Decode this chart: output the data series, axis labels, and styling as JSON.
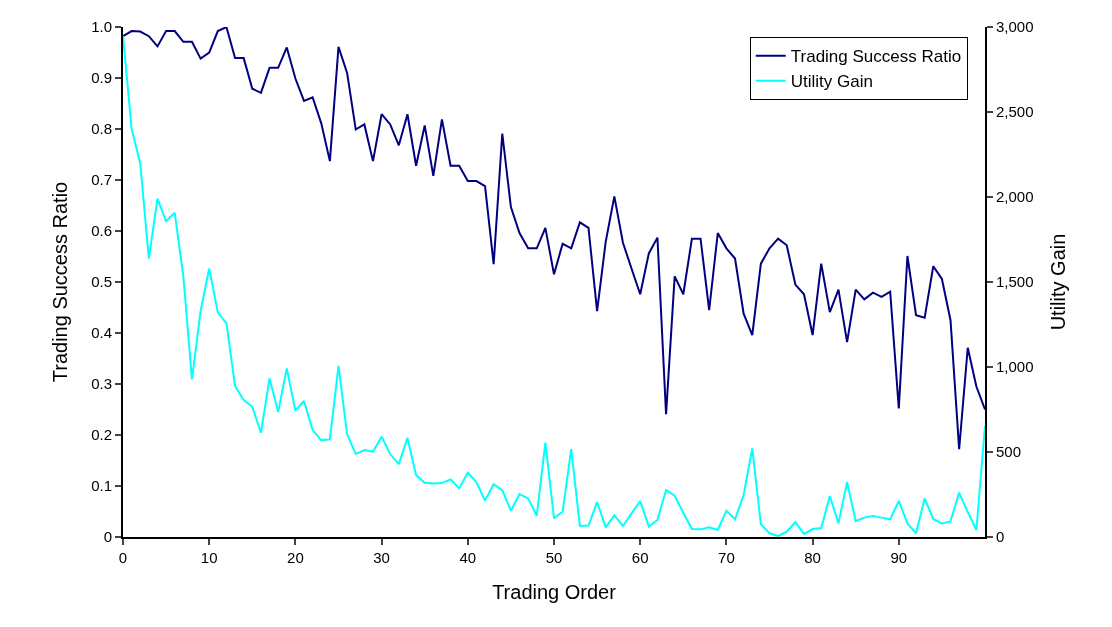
{
  "chart_data": {
    "type": "line",
    "xlabel": "Trading Order",
    "ylabel": "Trading Success Ratio",
    "y2label": "Utility Gain",
    "x": [
      0,
      1,
      2,
      3,
      4,
      5,
      6,
      7,
      8,
      9,
      10,
      11,
      12,
      13,
      14,
      15,
      16,
      17,
      18,
      19,
      20,
      21,
      22,
      23,
      24,
      25,
      26,
      27,
      28,
      29,
      30,
      31,
      32,
      33,
      34,
      35,
      36,
      37,
      38,
      39,
      40,
      41,
      42,
      43,
      44,
      45,
      46,
      47,
      48,
      49,
      50,
      51,
      52,
      53,
      54,
      55,
      56,
      57,
      58,
      59,
      60,
      61,
      62,
      63,
      64,
      65,
      66,
      67,
      68,
      69,
      70,
      71,
      72,
      73,
      74,
      75,
      76,
      77,
      78,
      79,
      80,
      81,
      82,
      83,
      84,
      85,
      86,
      87,
      88,
      89,
      90,
      91,
      92,
      93,
      94,
      95,
      96,
      97,
      98,
      99,
      100
    ],
    "xlim": [
      0,
      100
    ],
    "xticks": [
      0,
      10,
      20,
      30,
      40,
      50,
      60,
      70,
      80,
      90
    ],
    "ylim": [
      0,
      1
    ],
    "yticks": [
      0,
      0.1,
      0.2,
      0.3,
      0.4,
      0.5,
      0.6,
      0.7,
      0.8,
      0.9,
      {
        "value": 1,
        "label": "1.0"
      }
    ],
    "y2lim": [
      0,
      3000
    ],
    "y2ticks": [
      0,
      500,
      {
        "value": 1000,
        "label": "1,000"
      },
      {
        "value": 1500,
        "label": "1,500"
      },
      {
        "value": 2000,
        "label": "2,000"
      },
      {
        "value": 2500,
        "label": "2,500"
      },
      {
        "value": 3000,
        "label": "3,000"
      }
    ],
    "grid": false,
    "legend": "top right",
    "marker": "none",
    "line_style": "solid",
    "series": [
      {
        "name": "Trading Success Ratio",
        "color": "#000080",
        "values": [
          0.982,
          0.992,
          0.991,
          0.982,
          0.962,
          0.992,
          0.992,
          0.971,
          0.971,
          0.938,
          0.95,
          0.992,
          1.0,
          0.939,
          0.939,
          0.879,
          0.871,
          0.92,
          0.92,
          0.96,
          0.899,
          0.855,
          0.862,
          0.811,
          0.737,
          0.961,
          0.91,
          0.799,
          0.809,
          0.737,
          0.829,
          0.809,
          0.768,
          0.829,
          0.728,
          0.807,
          0.708,
          0.819,
          0.728,
          0.728,
          0.698,
          0.698,
          0.688,
          0.535,
          0.791,
          0.647,
          0.596,
          0.566,
          0.566,
          0.606,
          0.515,
          0.575,
          0.566,
          0.617,
          0.606,
          0.443,
          0.579,
          0.668,
          0.577,
          0.526,
          0.476,
          0.556,
          0.587,
          0.241,
          0.511,
          0.476,
          0.585,
          0.585,
          0.445,
          0.596,
          0.566,
          0.546,
          0.438,
          0.396,
          0.536,
          0.566,
          0.585,
          0.572,
          0.495,
          0.476,
          0.396,
          0.536,
          0.441,
          0.485,
          0.382,
          0.485,
          0.466,
          0.479,
          0.471,
          0.481,
          0.252,
          0.551,
          0.435,
          0.43,
          0.531,
          0.506,
          0.425,
          0.172,
          0.371,
          0.295,
          0.25
        ]
      },
      {
        "name": "Utility Gain",
        "color": "#00ffff",
        "axis": "y2",
        "values": [
          2947,
          2402,
          2197,
          1638,
          1991,
          1858,
          1907,
          1534,
          927,
          1329,
          1579,
          1321,
          1256,
          888,
          805,
          766,
          613,
          933,
          735,
          992,
          743,
          800,
          629,
          570,
          574,
          1007,
          605,
          488,
          511,
          502,
          590,
          488,
          429,
          584,
          364,
          319,
          314,
          317,
          339,
          286,
          378,
          323,
          214,
          310,
          276,
          155,
          253,
          227,
          125,
          555,
          110,
          149,
          517,
          65,
          67,
          206,
          57,
          127,
          65,
          139,
          212,
          61,
          100,
          276,
          243,
          143,
          47,
          45,
          57,
          41,
          155,
          104,
          247,
          521,
          74,
          22,
          6,
          31,
          88,
          18,
          47,
          53,
          241,
          80,
          323,
          94,
          114,
          123,
          114,
          104,
          212,
          80,
          22,
          227,
          106,
          80,
          92,
          261,
          147,
          41,
          653
        ]
      }
    ]
  }
}
